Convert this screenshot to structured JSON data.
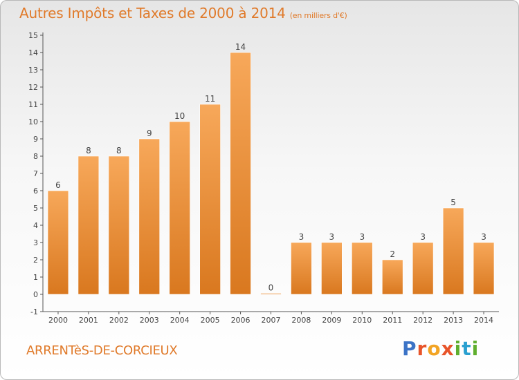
{
  "header": {
    "title": "Autres Impôts et Taxes de 2000 à 2014",
    "unit": "(en milliers d'€)"
  },
  "footer": {
    "commune": "ARRENTèS-DE-CORCIEUX",
    "logo_text": "Proxiti"
  },
  "colors": {
    "accent": "#e07a2a",
    "bar_light": "#f7a85a",
    "bar_dark": "#d9781f",
    "axis": "#555555"
  },
  "chart_data": {
    "type": "bar",
    "title": "Autres Impôts et Taxes de 2000 à 2014",
    "subtitle": "(en milliers d'€)",
    "xlabel": "",
    "ylabel": "",
    "categories": [
      "2000",
      "2001",
      "2002",
      "2003",
      "2004",
      "2005",
      "2006",
      "2007",
      "2008",
      "2009",
      "2010",
      "2011",
      "2012",
      "2013",
      "2014"
    ],
    "values": [
      6,
      8,
      8,
      9,
      10,
      11,
      14,
      0,
      3,
      3,
      3,
      2,
      3,
      5,
      3
    ],
    "data_labels": [
      "6",
      "8",
      "8",
      "9",
      "10",
      "11",
      "14",
      "0",
      "3",
      "3",
      "3",
      "2",
      "3",
      "5",
      "3"
    ],
    "ylim": [
      -1,
      15
    ],
    "yticks": [
      -1,
      0,
      1,
      2,
      3,
      4,
      5,
      6,
      7,
      8,
      9,
      10,
      11,
      12,
      13,
      14,
      15
    ],
    "ytick_labels": [
      "-1",
      "0",
      "1",
      "2",
      "3",
      "4",
      "5",
      "6",
      "7",
      "8",
      "9",
      "10",
      "11",
      "12",
      "13",
      "14",
      "15"
    ],
    "grid": false,
    "legend": "none"
  }
}
